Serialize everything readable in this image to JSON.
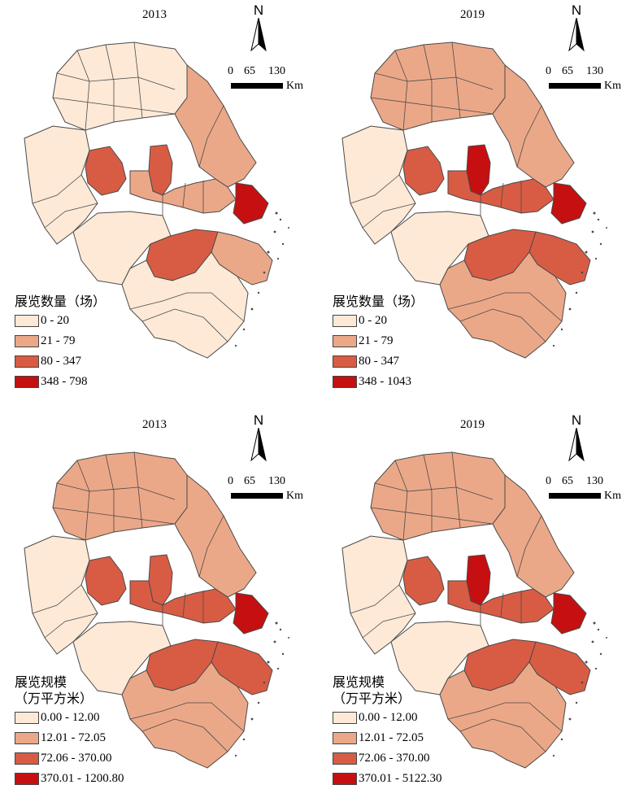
{
  "colors": {
    "c1": "#fde9d6",
    "c2": "#eba888",
    "c3": "#d85c44",
    "c4": "#c60f10",
    "line": "#4a4a4a"
  },
  "panels": [
    {
      "year": "2013",
      "legend_title": [
        "展览数量（场）"
      ],
      "classes": [
        "0 - 20",
        "21 - 79",
        "80 - 347",
        "348 - 798"
      ],
      "north": "N",
      "scale": {
        "ticks": [
          "0",
          "65",
          "130"
        ],
        "unit": "Km"
      },
      "fill": {
        "north": 0,
        "ne": 1,
        "mid": 0,
        "hefei": 2,
        "nanjing": 2,
        "sw": 0,
        "south": 0,
        "hangzhou": 2,
        "se": 1,
        "shanghai": 3,
        "sunan": 1
      }
    },
    {
      "year": "2019",
      "legend_title": [
        "展览数量（场）"
      ],
      "classes": [
        "0 - 20",
        "21 - 79",
        "80 - 347",
        "348 - 1043"
      ],
      "north": "N",
      "scale": {
        "ticks": [
          "0",
          "65",
          "130"
        ],
        "unit": "Km"
      },
      "fill": {
        "north": 1,
        "ne": 1,
        "mid": 0,
        "hefei": 2,
        "nanjing": 3,
        "sw": 0,
        "south": 1,
        "hangzhou": 2,
        "se": 2,
        "shanghai": 3,
        "sunan": 2
      }
    },
    {
      "year": "2013",
      "legend_title": [
        "展览规模",
        "（万平方米）"
      ],
      "classes": [
        "0.00 - 12.00",
        "12.01 - 72.05",
        "72.06 - 370.00",
        "370.01 - 1200.80"
      ],
      "north": "N",
      "scale": {
        "ticks": [
          "0",
          "65",
          "130"
        ],
        "unit": "Km"
      },
      "fill": {
        "north": 1,
        "ne": 1,
        "mid": 0,
        "hefei": 2,
        "nanjing": 2,
        "sw": 0,
        "south": 1,
        "hangzhou": 2,
        "se": 2,
        "shanghai": 3,
        "sunan": 2
      }
    },
    {
      "year": "2019",
      "legend_title": [
        "展览规模",
        "（万平方米）"
      ],
      "classes": [
        "0.00 - 12.00",
        "12.01 - 72.05",
        "72.06 - 370.00",
        "370.01 - 5122.30"
      ],
      "north": "N",
      "scale": {
        "ticks": [
          "0",
          "65",
          "130"
        ],
        "unit": "Km"
      },
      "fill": {
        "north": 1,
        "ne": 1,
        "mid": 0,
        "hefei": 2,
        "nanjing": 3,
        "sw": 0,
        "south": 1,
        "hangzhou": 2,
        "se": 2,
        "shanghai": 3,
        "sunan": 2
      }
    }
  ]
}
